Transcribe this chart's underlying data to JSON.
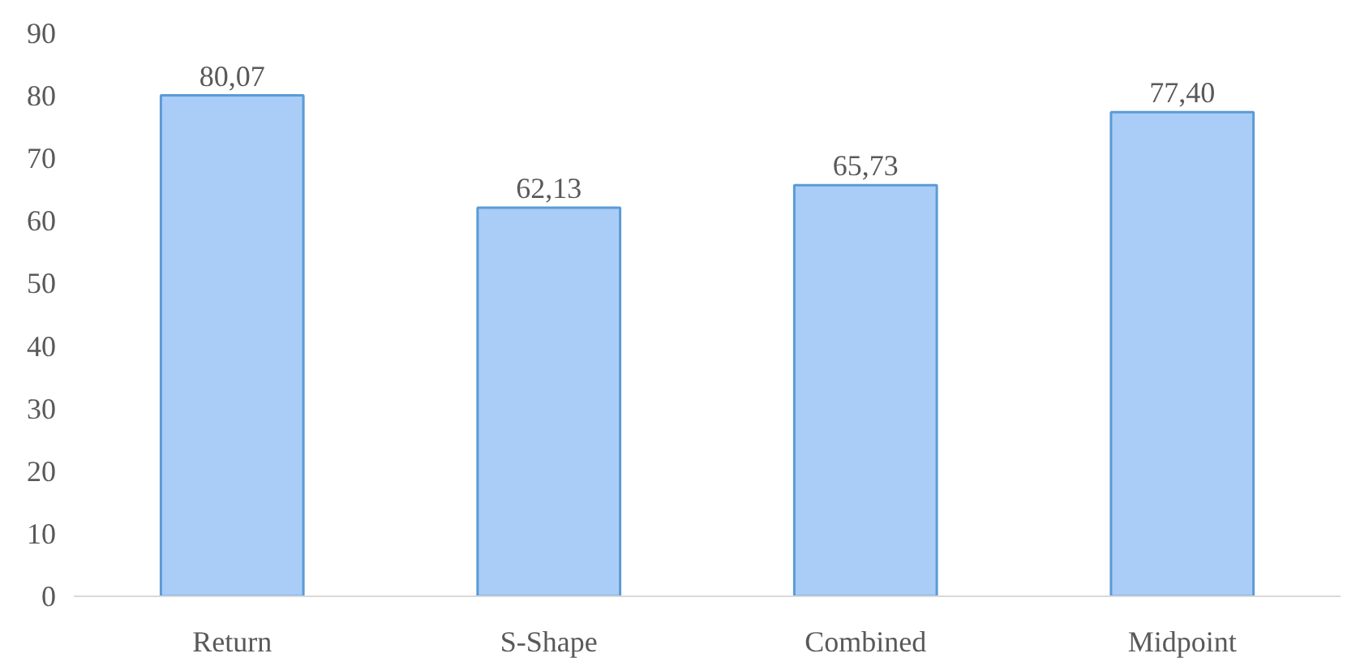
{
  "chart_data": {
    "type": "bar",
    "categories": [
      "Return",
      "S-Shape",
      "Combined",
      "Midpoint"
    ],
    "values": [
      80.07,
      62.13,
      65.73,
      77.4
    ],
    "value_labels": [
      "80,07",
      "62,13",
      "65,73",
      "77,40"
    ],
    "color": "#a9cdf7",
    "ylim": [
      0,
      90
    ],
    "yticks": [
      0,
      10,
      20,
      30,
      40,
      50,
      60,
      70,
      80,
      90
    ],
    "grid": false
  }
}
